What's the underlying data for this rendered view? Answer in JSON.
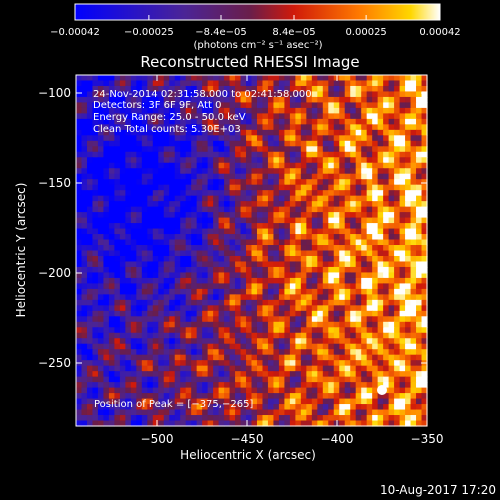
{
  "chart_data": {
    "type": "heatmap",
    "title": "Reconstructed RHESSI Image",
    "xlabel": "Heliocentric X (arcsec)",
    "ylabel": "Heliocentric Y (arcsec)",
    "xlim": [
      -545,
      -350
    ],
    "ylim": [
      -285,
      -90
    ],
    "xticks": [
      -500,
      -450,
      -400,
      -350
    ],
    "yticks": [
      -100,
      -150,
      -200,
      -250
    ],
    "xtick_labels": [
      "−500",
      "−450",
      "−400",
      "−350"
    ],
    "ytick_labels": [
      "−100",
      "−150",
      "−200",
      "−250"
    ],
    "colorbar": {
      "range": [
        -0.00042,
        0.00042
      ],
      "ticks": [
        -0.00042,
        -0.00025,
        -8.4e-05,
        8.4e-05,
        0.00025,
        0.00042
      ],
      "tick_labels": [
        "−0.00042",
        "−0.00025",
        "−8.4e−05",
        "8.4e−05",
        "0.00025",
        "0.00042"
      ],
      "units": "(photons cm⁻² s⁻¹ asec⁻²)",
      "colormap": "blue-purple-red-orange-yellow-white"
    },
    "annotations": [
      "24-Nov-2014 02:31:58.000 to 02:41:58.000",
      "Detectors: 3F 6F 9F, Att 0",
      "Energy Range: 25.0 - 50.0 keV",
      "Clean    Total counts: 5.30E+03"
    ],
    "peak_label": "Position of Peak = [−375,−265]",
    "peak_position": [
      -375,
      -265
    ],
    "grid": false
  },
  "footer": {
    "timestamp": "10-Aug-2017 17:20"
  },
  "colors": {
    "background": "#000000",
    "text": "#ffffff",
    "colormap_stops": [
      "#0000ff",
      "#5a1fa8",
      "#7a1a3a",
      "#c8140a",
      "#ff6a00",
      "#ffcc00",
      "#ffffff"
    ]
  }
}
